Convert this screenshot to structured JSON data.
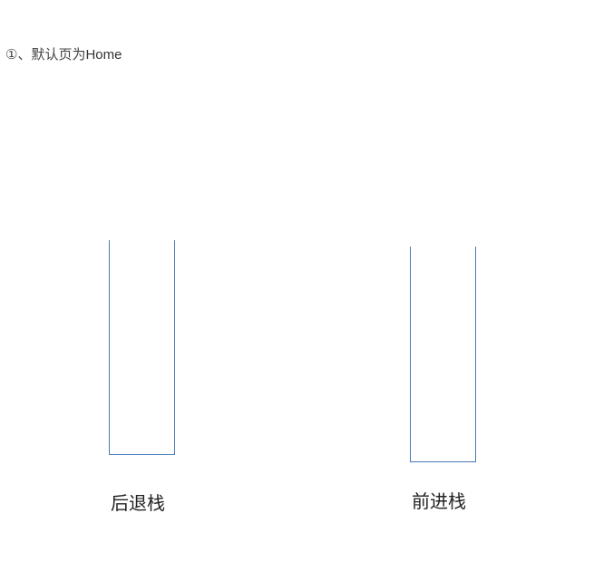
{
  "caption": {
    "prefix": "①、默认页为",
    "home": "Home"
  },
  "stacks": {
    "back": {
      "label": "后退栈",
      "items": []
    },
    "forward": {
      "label": "前进栈",
      "items": []
    }
  },
  "colors": {
    "stack_border": "#4a7ab8"
  }
}
